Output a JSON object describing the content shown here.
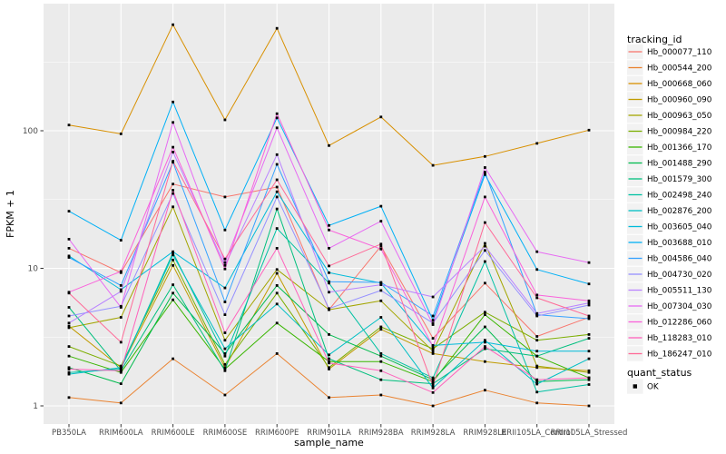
{
  "figure": {
    "background": "#FFFFFF",
    "panel_bg": "#EBEBEB",
    "grid_color": "#FFFFFF",
    "tick_text_color": "#4D4D4D",
    "axis_title_color": "#000000",
    "legend_key_bg": "#F2F2F2",
    "point_color": "#000000"
  },
  "chart_data": {
    "type": "line",
    "title": "",
    "xlabel": "sample_name",
    "ylabel": "FPKM + 1",
    "y_scale": "log10",
    "ylim": [
      0.74,
      800
    ],
    "y_major_ticks": [
      1,
      10,
      100
    ],
    "y_tick_labels": [
      "1",
      "10",
      "100"
    ],
    "y_minor_ticks": [
      3.162,
      31.62,
      316.2
    ],
    "grid": true,
    "legend_position": "right",
    "legend_title": "tracking_id",
    "point_shape": "square",
    "categories": [
      "PB350LA",
      "RRIM600LA",
      "RRIM600LE",
      "RRIM600SE",
      "RRIM600PE",
      "RRIM901LA",
      "RRIM928BA",
      "RRIM928LA",
      "RRIM928LE",
      "RRII105LA_Control",
      "RRII105LA_Stressed"
    ],
    "series": [
      {
        "name": "Hb_000077_110",
        "color": "#F8766D",
        "values": [
          14,
          9.3,
          41,
          33,
          39,
          5,
          14.5,
          3.1,
          7.8,
          3.2,
          4.4
        ]
      },
      {
        "name": "Hb_000544_200",
        "color": "#EA8331",
        "values": [
          1.15,
          1.05,
          2.2,
          1.2,
          2.4,
          1.15,
          1.2,
          1,
          1.3,
          1.05,
          1
        ]
      },
      {
        "name": "Hb_000668_060",
        "color": "#D89000",
        "values": [
          110,
          95,
          590,
          120,
          555,
          78,
          126,
          56,
          65,
          81,
          101
        ]
      },
      {
        "name": "Hb_000960_090",
        "color": "#C09B00",
        "values": [
          3.8,
          1.9,
          10.5,
          1.9,
          9.2,
          1.85,
          3.6,
          2.4,
          2.1,
          1.9,
          1.8
        ]
      },
      {
        "name": "Hb_000963_050",
        "color": "#A3A500",
        "values": [
          3.7,
          4.4,
          28,
          3,
          9.8,
          5,
          5.8,
          2.5,
          15.2,
          1.95,
          1.75
        ]
      },
      {
        "name": "Hb_000984_220",
        "color": "#7CAE00",
        "values": [
          2.7,
          1.95,
          11.5,
          2,
          6.6,
          1.9,
          3.75,
          2.6,
          4.8,
          3,
          3.3
        ]
      },
      {
        "name": "Hb_001366_170",
        "color": "#39B600",
        "values": [
          2.3,
          1.75,
          5.9,
          1.85,
          4,
          2.1,
          2.1,
          1.5,
          4.6,
          2.3,
          1.6
        ]
      },
      {
        "name": "Hb_001488_290",
        "color": "#00BB4E",
        "values": [
          1.9,
          1.45,
          6.6,
          2.4,
          7.5,
          3.3,
          2.3,
          1.55,
          3.75,
          1.5,
          1.55
        ]
      },
      {
        "name": "Hb_001579_300",
        "color": "#00BF7D",
        "values": [
          5.2,
          1.8,
          7.6,
          1.8,
          27,
          2.2,
          1.55,
          1.45,
          2.6,
          2.3,
          3.1
        ]
      },
      {
        "name": "Hb_002498_240",
        "color": "#00C1A3",
        "values": [
          1.75,
          1.85,
          13,
          2.3,
          19.5,
          7.8,
          2.4,
          1.6,
          11.2,
          1.26,
          1.43
        ]
      },
      {
        "name": "Hb_002876_200",
        "color": "#00BFC4",
        "values": [
          1.7,
          1.9,
          12.5,
          2.6,
          5.5,
          2.35,
          4.4,
          1.35,
          3,
          1.44,
          2.2
        ]
      },
      {
        "name": "Hb_003605_040",
        "color": "#00BBDA",
        "values": [
          12.3,
          7,
          13.2,
          7.2,
          36,
          9.3,
          7.8,
          2.75,
          2.9,
          2.5,
          2.5
        ]
      },
      {
        "name": "Hb_003688_010",
        "color": "#00B0F6",
        "values": [
          26,
          16,
          162,
          19,
          124,
          20.5,
          28.3,
          4.2,
          48,
          9.8,
          7.7
        ]
      },
      {
        "name": "Hb_004586_040",
        "color": "#35A2FF",
        "values": [
          12,
          7.5,
          59,
          5.7,
          57,
          8,
          7.9,
          4.5,
          50,
          4.6,
          4.3
        ]
      },
      {
        "name": "Hb_004730_020",
        "color": "#9590FF",
        "values": [
          4.5,
          5.3,
          35,
          4.6,
          33,
          5.1,
          6.9,
          4,
          13.5,
          4.5,
          5.4
        ]
      },
      {
        "name": "Hb_005511_130",
        "color": "#B983FF",
        "values": [
          4,
          6.8,
          70,
          10.5,
          67,
          6.7,
          7.6,
          6.2,
          14.5,
          4.7,
          5.6
        ]
      },
      {
        "name": "Hb_007304_030",
        "color": "#E76BF3",
        "values": [
          16.3,
          5.2,
          115,
          11,
          105,
          14,
          22,
          3.9,
          54,
          13.2,
          11
        ]
      },
      {
        "name": "Hb_012286_060",
        "color": "#FA62DB",
        "values": [
          6.7,
          9.5,
          76,
          9.9,
          133,
          19,
          13.8,
          2.7,
          33,
          6.4,
          5.8
        ]
      },
      {
        "name": "Hb_118283_010",
        "color": "#FF62BC",
        "values": [
          1.85,
          1.8,
          37,
          3.4,
          14,
          2.05,
          1.8,
          1.25,
          2.7,
          1.55,
          1.6
        ]
      },
      {
        "name": "Hb_186247_010",
        "color": "#FF6A98",
        "values": [
          6.6,
          2.9,
          60,
          11.7,
          44,
          10.4,
          15,
          1.4,
          21.5,
          6.1,
          4.5
        ]
      }
    ],
    "second_legend": {
      "title": "quant_status",
      "items": [
        {
          "label": "OK",
          "shape": "square",
          "color": "#000000"
        }
      ]
    }
  }
}
